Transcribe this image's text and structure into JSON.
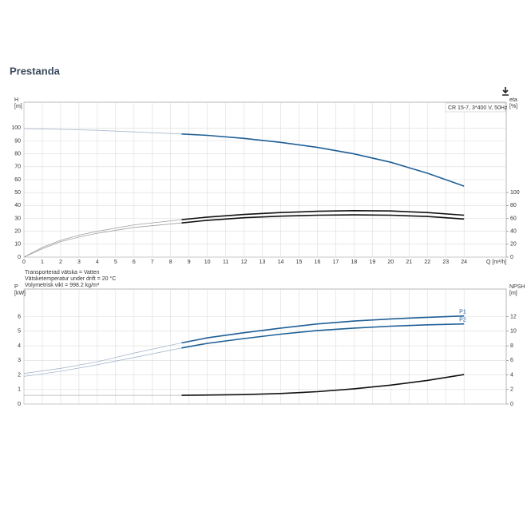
{
  "page": {
    "title": "Prestanda"
  },
  "chart_data": [
    {
      "type": "line",
      "subtitle": "CR 15-7, 3*400 V, 50Hz",
      "y_label": [
        "H",
        "[m]"
      ],
      "y2_label": [
        "eta",
        "[%]"
      ],
      "x_label": "Q [m³/h]",
      "xlim": [
        0,
        26.3
      ],
      "xticks": [
        0,
        1,
        2,
        3,
        4,
        5,
        6,
        7,
        8,
        9,
        10,
        11,
        12,
        13,
        14,
        15,
        16,
        17,
        18,
        19,
        20,
        21,
        22,
        23,
        24
      ],
      "ylim": [
        0,
        120
      ],
      "yticks": [
        0,
        10,
        20,
        30,
        40,
        50,
        60,
        70,
        80,
        90,
        100
      ],
      "y2lim": [
        0,
        240
      ],
      "y2ticks": [
        0,
        20,
        40,
        60,
        80,
        100
      ],
      "grid": true,
      "annotations": [
        "Transporterad vätska = Vatten",
        "Vätsketemperatur under drift = 20 °C",
        "Volymetrisk vikt = 998.2 kg/m³"
      ],
      "series": [
        {
          "color": "#a9b9cf",
          "x": [
            0,
            2,
            4,
            6,
            8.6
          ],
          "values": [
            99.5,
            99,
            98.2,
            97,
            95.4
          ]
        },
        {
          "color": "#1f5f96",
          "x": [
            8.6,
            10,
            12,
            14,
            16,
            18,
            20,
            22,
            24
          ],
          "values": [
            95.4,
            94.3,
            92,
            88.9,
            85,
            80,
            73.5,
            65,
            55
          ]
        },
        {
          "color": "#a0a0a0",
          "axis": "y2",
          "x": [
            0,
            1,
            2,
            3,
            4,
            6,
            8.6
          ],
          "values": [
            0,
            15,
            26,
            34,
            40,
            50,
            58
          ]
        },
        {
          "color": "#111111",
          "axis": "y2",
          "x": [
            8.6,
            10,
            12,
            14,
            16,
            18,
            20,
            22,
            24
          ],
          "values": [
            58,
            62,
            66,
            69,
            71,
            72,
            71.5,
            69,
            65
          ]
        },
        {
          "color": "#a0a0a0",
          "axis": "y2",
          "x": [
            0,
            1,
            2,
            3,
            4,
            6,
            8.6
          ],
          "values": [
            0,
            13,
            24,
            31,
            37,
            46,
            53
          ]
        },
        {
          "color": "#111111",
          "axis": "y2",
          "x": [
            8.6,
            10,
            12,
            14,
            16,
            18,
            20,
            22,
            24
          ],
          "values": [
            53,
            57,
            61,
            63.5,
            65,
            65.5,
            65,
            63,
            59
          ]
        }
      ]
    },
    {
      "type": "line",
      "y_label": [
        "P",
        "[kW]"
      ],
      "y2_label": [
        "NPSH",
        "[m]"
      ],
      "xlim": [
        0,
        26.3
      ],
      "xticks": [
        0,
        1,
        2,
        3,
        4,
        5,
        6,
        7,
        8,
        9,
        10,
        11,
        12,
        13,
        14,
        15,
        16,
        17,
        18,
        19,
        20,
        21,
        22,
        23,
        24
      ],
      "ylim": [
        0,
        7.9
      ],
      "yticks": [
        0,
        1,
        2,
        3,
        4,
        5,
        6
      ],
      "y2lim": [
        0,
        15.8
      ],
      "y2ticks": [
        0,
        2,
        4,
        6,
        8,
        10,
        12
      ],
      "grid": true,
      "series": [
        {
          "color": "#a9b9cf",
          "x": [
            0,
            2,
            4,
            6,
            8.6
          ],
          "values": [
            2.1,
            2.45,
            2.9,
            3.5,
            4.2
          ]
        },
        {
          "name": "P1",
          "color": "#1f5f96",
          "x": [
            8.6,
            10,
            12,
            14,
            16,
            18,
            20,
            22,
            24
          ],
          "values": [
            4.2,
            4.55,
            4.9,
            5.22,
            5.5,
            5.7,
            5.85,
            5.96,
            6.05
          ]
        },
        {
          "color": "#a9b9cf",
          "x": [
            0,
            2,
            4,
            6,
            8.6
          ],
          "values": [
            1.9,
            2.25,
            2.7,
            3.2,
            3.85
          ]
        },
        {
          "name": "P2",
          "color": "#1f5f96",
          "x": [
            8.6,
            10,
            12,
            14,
            16,
            18,
            20,
            22,
            24
          ],
          "values": [
            3.85,
            4.17,
            4.5,
            4.8,
            5.05,
            5.22,
            5.35,
            5.44,
            5.5
          ]
        },
        {
          "color": "#b0b0b0",
          "axis": "y2",
          "x": [
            0,
            4,
            8.6
          ],
          "values": [
            1.2,
            1.2,
            1.2
          ]
        },
        {
          "color": "#111111",
          "axis": "y2",
          "x": [
            8.6,
            12,
            14,
            16,
            18,
            20,
            22,
            24
          ],
          "values": [
            1.2,
            1.3,
            1.45,
            1.7,
            2.1,
            2.6,
            3.25,
            4.05
          ]
        }
      ]
    }
  ]
}
